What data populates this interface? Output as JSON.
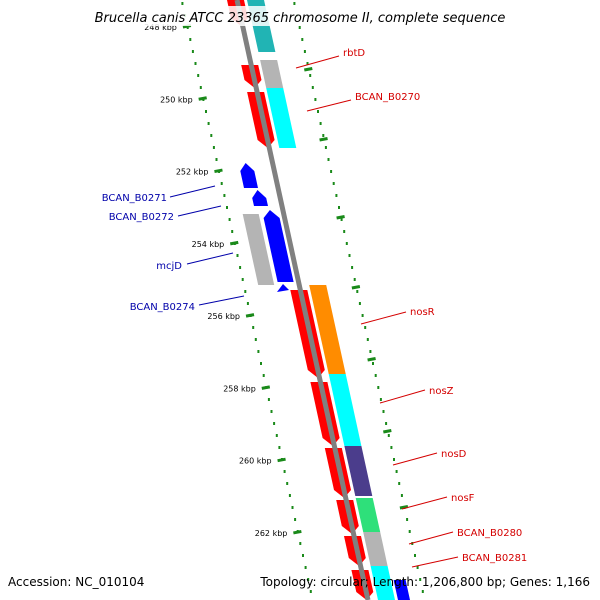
{
  "title": "Brucella canis ATCC 23365 chromosome II, complete sequence",
  "footer": {
    "accession": "Accession: NC_010104",
    "summary": "Topology: circular; Length: 1,206,800 bp; Genes: 1,166"
  },
  "colors": {
    "backbone": "#808080",
    "dots": "#1a8a1a",
    "forward_label": "#d40000",
    "reverse_label": "#0000aa",
    "red": "#ff0000",
    "gray": "#b4b4b4",
    "cyan": "#00ffff",
    "teal": "#21b4b4",
    "blue": "#0000ff",
    "orange": "#ff8c00",
    "purple": "#4b3d8c",
    "green": "#2ee07a"
  },
  "ticks": [
    {
      "label": "248 kbp",
      "kbp": 248
    },
    {
      "label": "250 kbp",
      "kbp": 250
    },
    {
      "label": "252 kbp",
      "kbp": 252
    },
    {
      "label": "254 kbp",
      "kbp": 254
    },
    {
      "label": "256 kbp",
      "kbp": 256
    },
    {
      "label": "258 kbp",
      "kbp": 258
    },
    {
      "label": "260 kbp",
      "kbp": 260
    },
    {
      "label": "262 kbp",
      "kbp": 262
    }
  ],
  "genes": [
    {
      "name": "rbtD",
      "strand": "+"
    },
    {
      "name": "BCAN_B0270",
      "strand": "+"
    },
    {
      "name": "BCAN_B0271",
      "strand": "-"
    },
    {
      "name": "BCAN_B0272",
      "strand": "-"
    },
    {
      "name": "mcjD",
      "strand": "-"
    },
    {
      "name": "BCAN_B0274",
      "strand": "-"
    },
    {
      "name": "nosR",
      "strand": "+"
    },
    {
      "name": "nosZ",
      "strand": "+"
    },
    {
      "name": "nosD",
      "strand": "+"
    },
    {
      "name": "nosF",
      "strand": "+"
    },
    {
      "name": "BCAN_B0280",
      "strand": "+"
    },
    {
      "name": "BCAN_B0281",
      "strand": "+"
    }
  ]
}
